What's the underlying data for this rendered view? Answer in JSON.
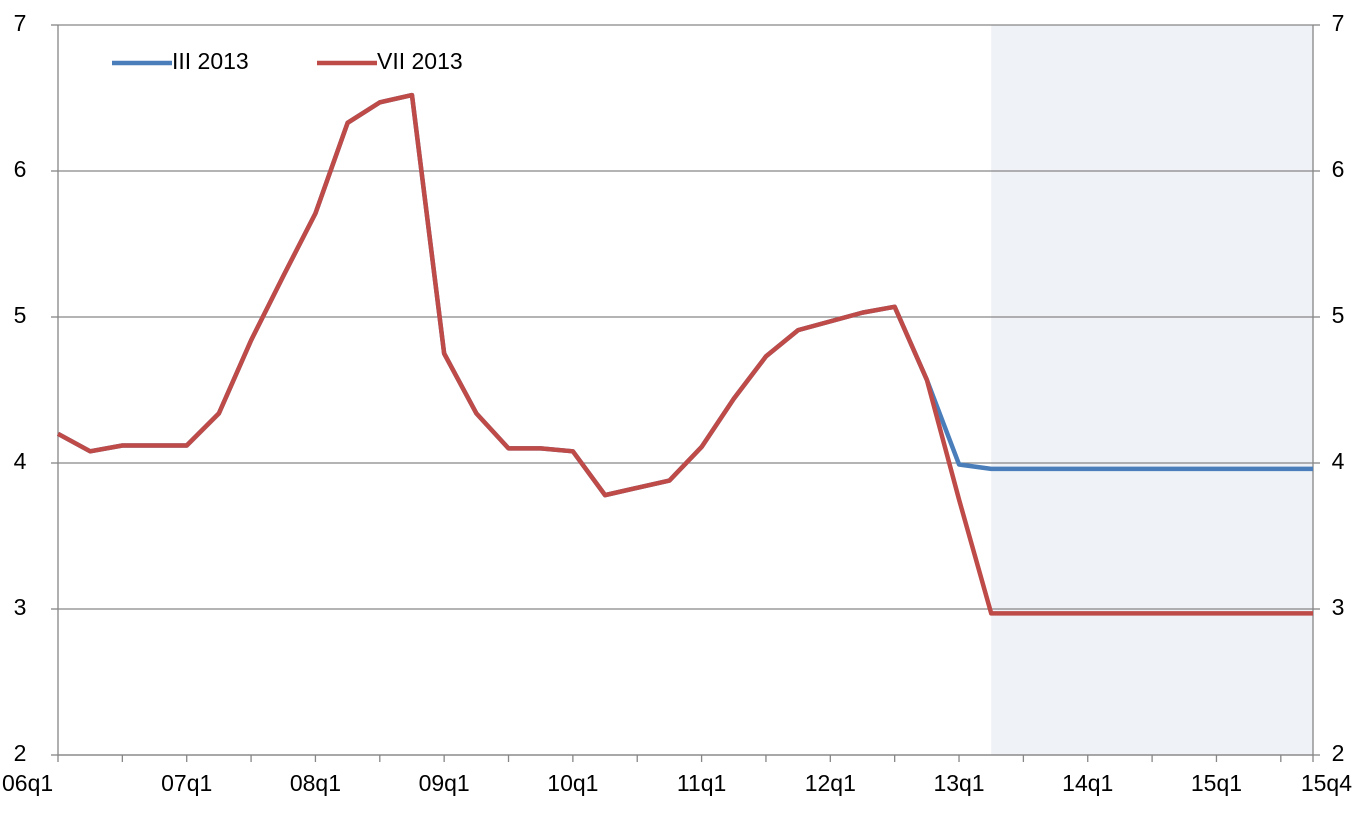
{
  "chart_data": {
    "type": "line",
    "categories": [
      "06q1",
      null,
      null,
      null,
      "07q1",
      null,
      null,
      null,
      "08q1",
      null,
      null,
      null,
      "09q1",
      null,
      null,
      null,
      "10q1",
      null,
      null,
      null,
      "11q1",
      null,
      null,
      null,
      "12q1",
      null,
      null,
      null,
      "13q1",
      null,
      null,
      null,
      "14q1",
      null,
      null,
      null,
      "15q1",
      null,
      null,
      "15q4"
    ],
    "series": [
      {
        "name": "III 2013",
        "color": "#4a7ebb",
        "values": [
          4.2,
          4.08,
          4.12,
          4.12,
          4.12,
          4.34,
          4.84,
          5.28,
          5.71,
          6.33,
          6.47,
          6.52,
          4.75,
          4.34,
          4.1,
          4.1,
          4.08,
          3.78,
          3.83,
          3.88,
          4.11,
          4.44,
          4.73,
          4.91,
          4.97,
          5.03,
          5.07,
          4.57,
          3.99,
          3.96,
          3.96,
          3.96,
          3.96,
          3.96,
          3.96,
          3.96,
          3.96,
          3.96,
          3.96,
          3.96
        ]
      },
      {
        "name": "VII 2013",
        "color": "#be4b48",
        "values": [
          4.2,
          4.08,
          4.12,
          4.12,
          4.12,
          4.34,
          4.84,
          5.28,
          5.71,
          6.33,
          6.47,
          6.52,
          4.75,
          4.34,
          4.1,
          4.1,
          4.08,
          3.78,
          3.83,
          3.88,
          4.11,
          4.44,
          4.73,
          4.91,
          4.97,
          5.03,
          5.07,
          4.57,
          3.75,
          2.97,
          2.97,
          2.97,
          2.97,
          2.97,
          2.97,
          2.97,
          2.97,
          2.97,
          2.97,
          2.97
        ]
      }
    ],
    "ylim": [
      2,
      7
    ],
    "yticks": [
      2,
      3,
      4,
      5,
      6,
      7
    ],
    "y2lim": [
      2,
      7
    ],
    "y2ticks": [
      2,
      3,
      4,
      5,
      6,
      7
    ],
    "grid": true,
    "legend": "top-left",
    "shaded_range": [
      29,
      39
    ],
    "shade_color": "#eff2f7"
  }
}
